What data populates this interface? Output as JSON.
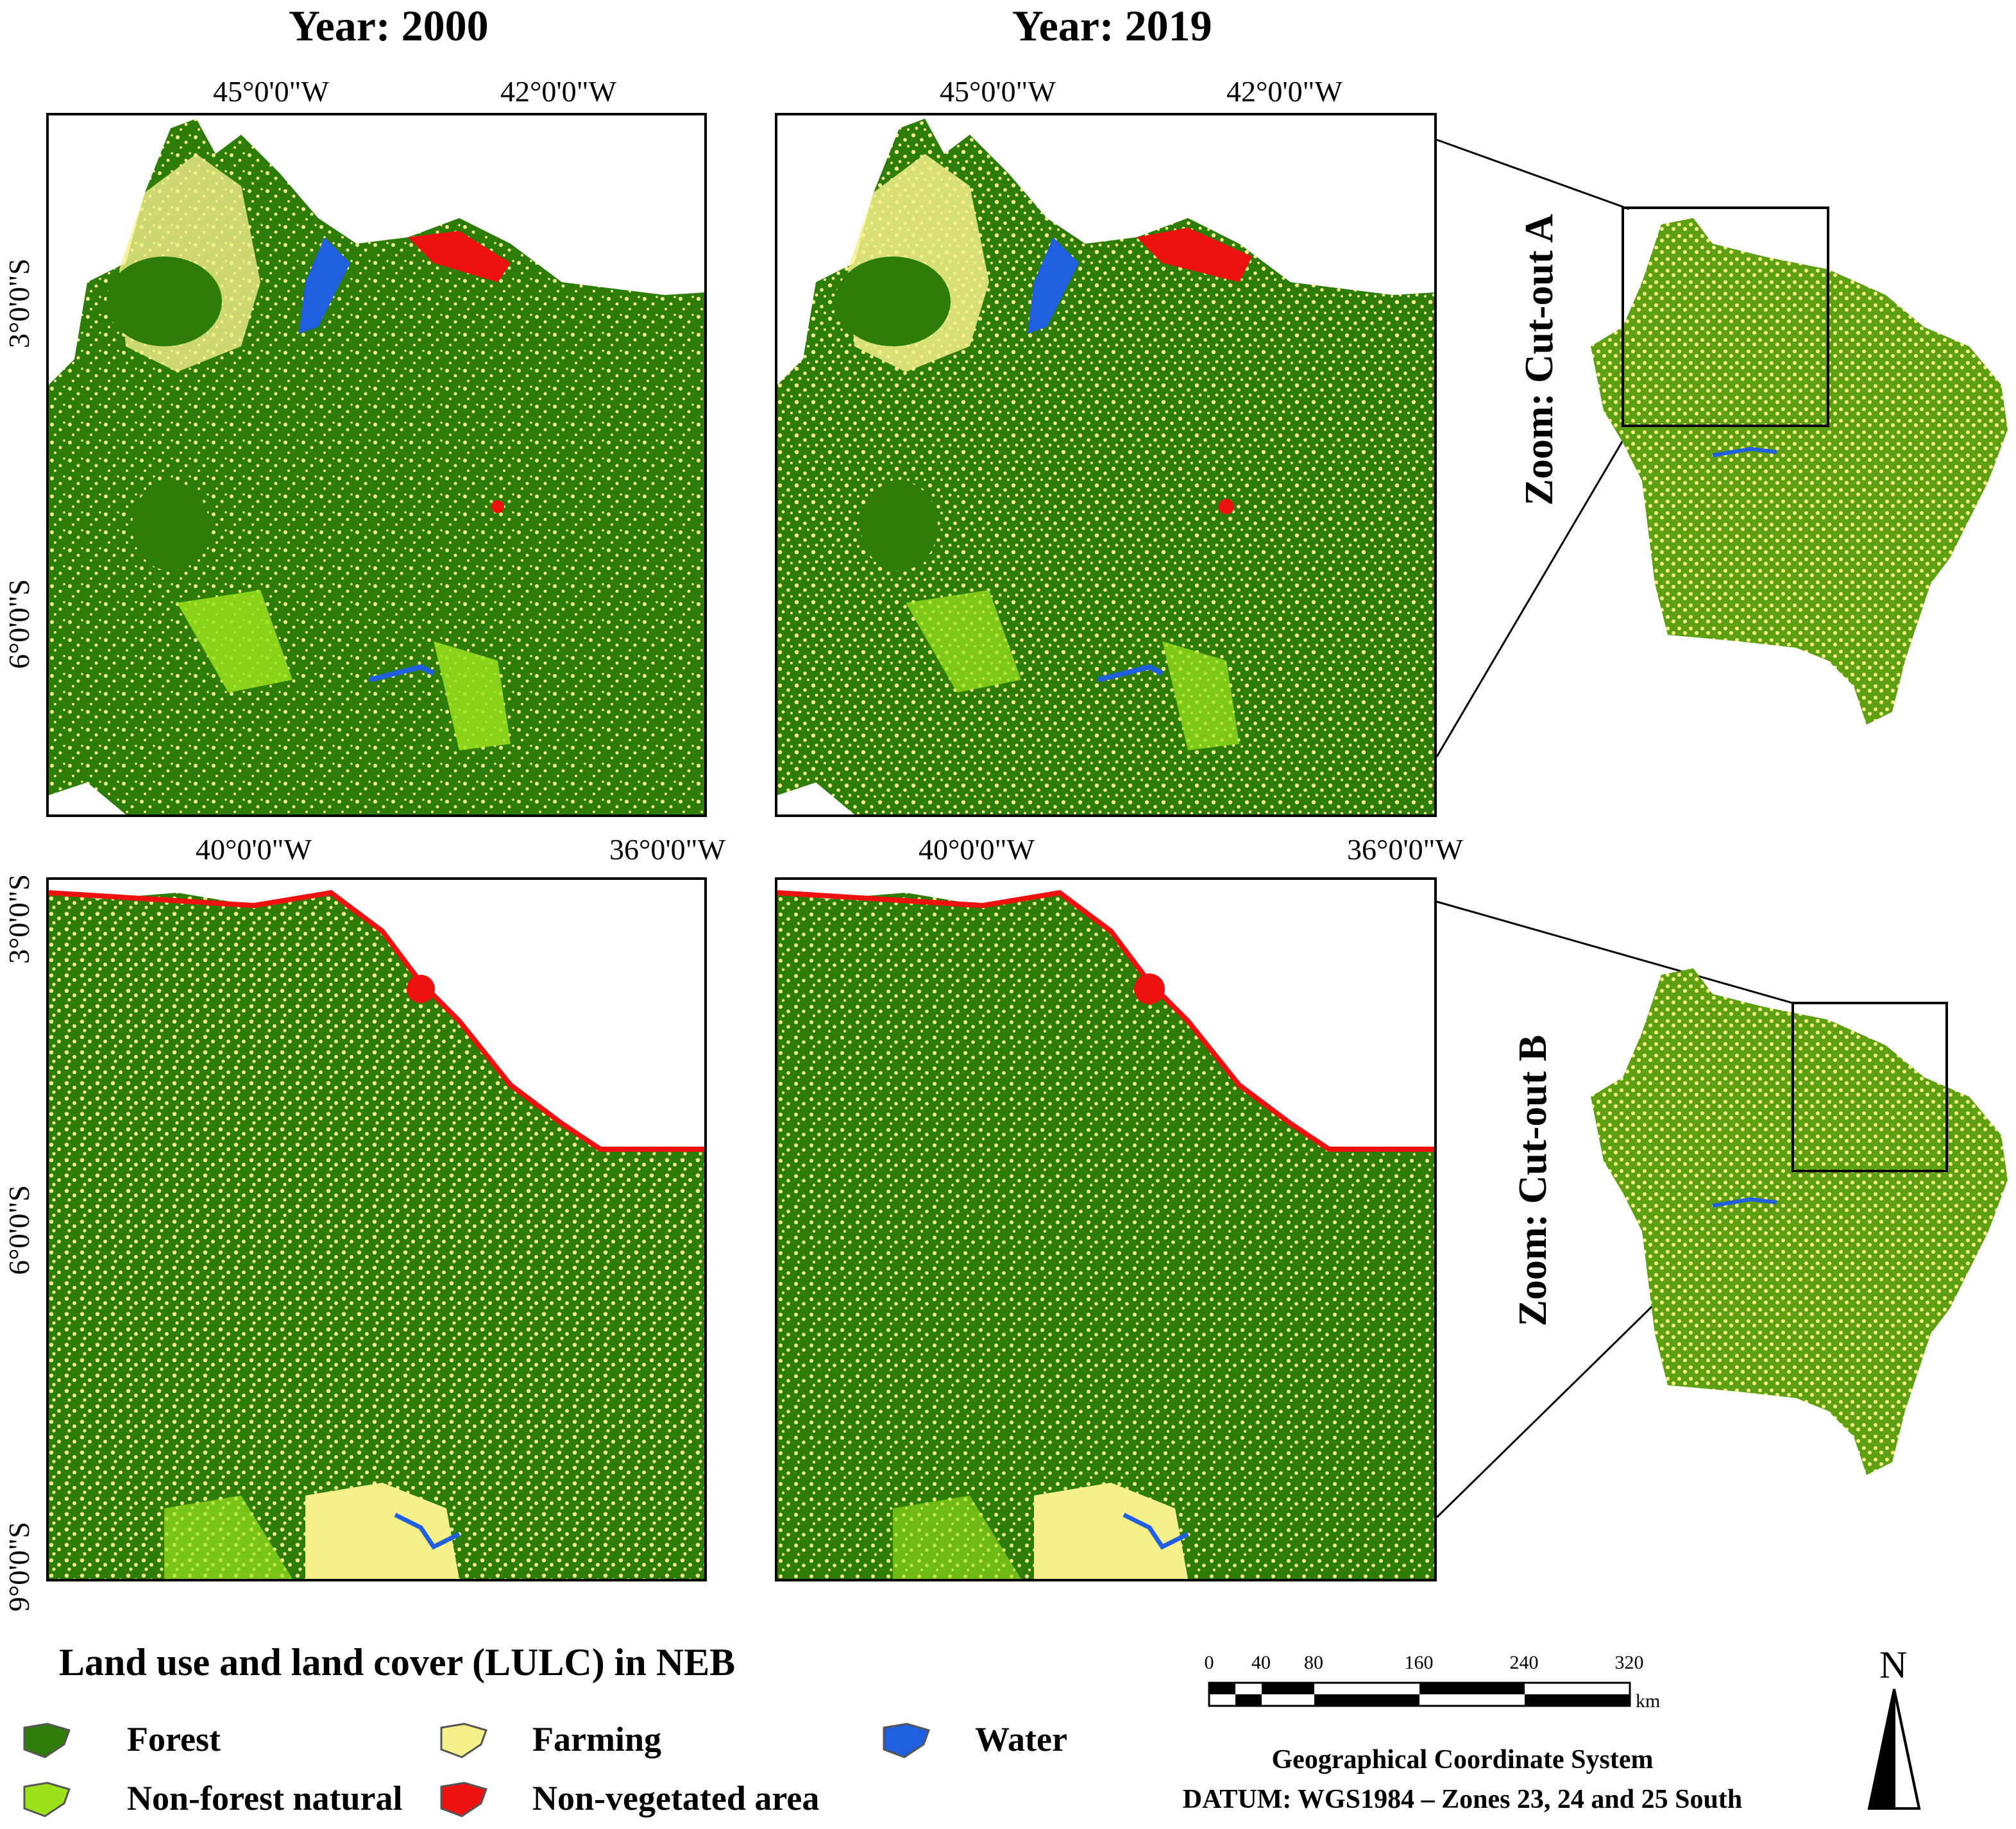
{
  "columns": {
    "left_title": "Year: 2000",
    "right_title": "Year: 2019"
  },
  "top_row": {
    "lon_ticks": [
      "45°0'0\"W",
      "42°0'0\"W"
    ],
    "lat_ticks": [
      "3°0'0\"S",
      "6°0'0\"S"
    ],
    "zoom_label": "Zoom: Cut-out A"
  },
  "bottom_row": {
    "lon_ticks": [
      "40°0'0\"W",
      "36°0'0\"W"
    ],
    "lat_ticks": [
      "3°0'0\"S",
      "6°0'0\"S",
      "9°0'0\"S"
    ],
    "zoom_label": "Zoom: Cut-out B"
  },
  "legend": {
    "title": "Land use and land cover (LULC) in NEB",
    "items": [
      {
        "label": "Forest",
        "color": "#2e7d0a"
      },
      {
        "label": "Farming",
        "color": "#f5f08a"
      },
      {
        "label": "Water",
        "color": "#1f5fe0"
      },
      {
        "label": "Non-forest natural",
        "color": "#9be21c"
      },
      {
        "label": "Non-vegetated area",
        "color": "#ef1010"
      }
    ]
  },
  "scale_bar": {
    "ticks": [
      "0",
      "40",
      "80",
      "160",
      "240",
      "320"
    ],
    "unit": "km"
  },
  "north_arrow": {
    "letter": "N",
    "icon": "north-arrow-icon"
  },
  "crs": {
    "line1": "Geographical Coordinate System",
    "line2": "DATUM: WGS1984 – Zones 23, 24 and 25 South"
  }
}
